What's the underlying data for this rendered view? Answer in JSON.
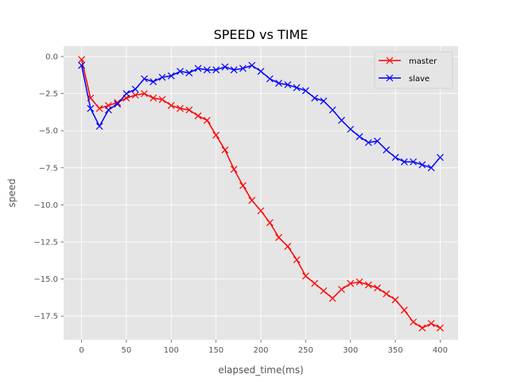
{
  "chart_data": {
    "type": "line",
    "title": "SPEED vs TIME",
    "xlabel": "elapsed_time(ms)",
    "ylabel": "speed",
    "xlim": [
      -20,
      420
    ],
    "ylim": [
      -19.1,
      0.7
    ],
    "xticks": [
      0,
      50,
      100,
      150,
      200,
      250,
      300,
      350,
      400
    ],
    "yticks": [
      0.0,
      -2.5,
      -5.0,
      -7.5,
      -10.0,
      -12.5,
      -15.0,
      -17.5
    ],
    "xtick_labels": [
      "0",
      "50",
      "100",
      "150",
      "200",
      "250",
      "300",
      "350",
      "400"
    ],
    "ytick_labels": [
      "0.0",
      "−2.5",
      "−5.0",
      "−7.5",
      "−10.0",
      "−12.5",
      "−15.0",
      "−17.5"
    ],
    "grid": true,
    "legend_position": "top-right",
    "x": [
      0,
      10,
      20,
      30,
      40,
      50,
      60,
      70,
      80,
      90,
      100,
      110,
      120,
      130,
      140,
      150,
      160,
      170,
      180,
      190,
      200,
      210,
      220,
      230,
      240,
      250,
      260,
      270,
      280,
      290,
      300,
      310,
      320,
      330,
      340,
      350,
      360,
      370,
      380,
      390,
      400
    ],
    "series": [
      {
        "name": "master",
        "color": "#ff0000",
        "marker": "x",
        "values": [
          -0.2,
          -2.8,
          -3.5,
          -3.3,
          -3.1,
          -2.8,
          -2.6,
          -2.5,
          -2.8,
          -2.9,
          -3.3,
          -3.5,
          -3.6,
          -4.0,
          -4.3,
          -5.3,
          -6.3,
          -7.6,
          -8.7,
          -9.7,
          -10.4,
          -11.2,
          -12.2,
          -12.8,
          -13.7,
          -14.8,
          -15.3,
          -15.8,
          -16.3,
          -15.7,
          -15.3,
          -15.2,
          -15.4,
          -15.6,
          -16.0,
          -16.4,
          -17.1,
          -17.9,
          -18.3,
          -18.0,
          -18.3
        ]
      },
      {
        "name": "slave",
        "color": "#0000ff",
        "marker": "x",
        "values": [
          -0.6,
          -3.5,
          -4.7,
          -3.6,
          -3.2,
          -2.5,
          -2.2,
          -1.5,
          -1.7,
          -1.4,
          -1.3,
          -1.0,
          -1.1,
          -0.8,
          -0.9,
          -0.9,
          -0.7,
          -0.9,
          -0.8,
          -0.6,
          -1.0,
          -1.5,
          -1.8,
          -1.9,
          -2.1,
          -2.3,
          -2.8,
          -3.0,
          -3.6,
          -4.3,
          -4.9,
          -5.4,
          -5.8,
          -5.7,
          -6.3,
          -6.8,
          -7.1,
          -7.1,
          -7.3,
          -7.5,
          -6.8
        ]
      }
    ]
  }
}
